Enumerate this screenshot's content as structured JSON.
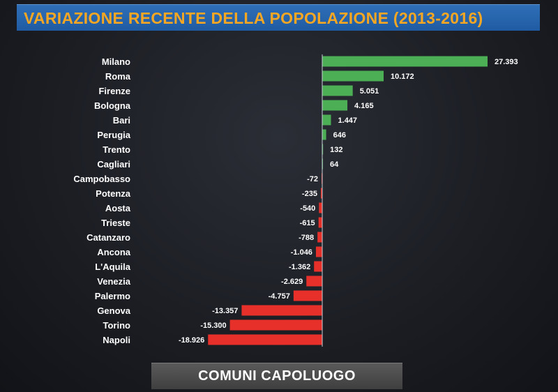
{
  "header": {
    "title": "VARIAZIONE RECENTE DELLA POPOLAZIONE (2013-2016)"
  },
  "footer": {
    "label": "COMUNI CAPOLUOGO"
  },
  "colors": {
    "positive": "#4caf55",
    "negative": "#e8302a",
    "title": "#f5a623",
    "banner": "#2366ad"
  },
  "chart_data": {
    "type": "bar",
    "orientation": "horizontal",
    "title": "VARIAZIONE RECENTE DELLA POPOLAZIONE (2013-2016)",
    "categories": [
      "Milano",
      "Roma",
      "Firenze",
      "Bologna",
      "Bari",
      "Perugia",
      "Trento",
      "Cagliari",
      "Campobasso",
      "Potenza",
      "Aosta",
      "Trieste",
      "Catanzaro",
      "Ancona",
      "L'Aquila",
      "Venezia",
      "Palermo",
      "Genova",
      "Torino",
      "Napoli"
    ],
    "values": [
      27393,
      10172,
      5051,
      4165,
      1447,
      646,
      132,
      64,
      -72,
      -235,
      -540,
      -615,
      -788,
      -1046,
      -1362,
      -2629,
      -4757,
      -13357,
      -15300,
      -18926
    ],
    "labels": [
      "27.393",
      "10.172",
      "5.051",
      "4.165",
      "1.447",
      "646",
      "132",
      "64",
      "-72",
      "-235",
      "-540",
      "-615",
      "-788",
      "-1.046",
      "-1.362",
      "-2.629",
      "-4.757",
      "-13.357",
      "-15.300",
      "-18.926"
    ],
    "xlim": [
      -19000,
      27400
    ],
    "grid": false,
    "legend": "none"
  }
}
